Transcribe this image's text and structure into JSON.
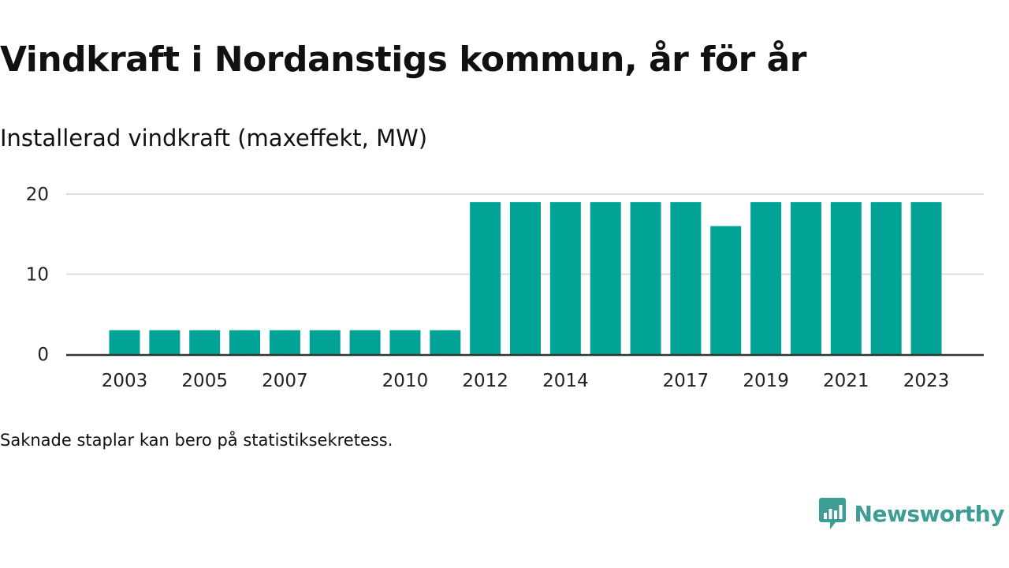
{
  "title": "Vindkraft i Nordanstigs kommun, år för år",
  "subtitle": "Installerad vindkraft (maxeffekt, MW)",
  "note": "Saknade staplar kan bero på statistiksekretess.",
  "brand": {
    "name": "Newsworthy",
    "icon": "newsworthy-logo-icon",
    "color": "#3e9c97"
  },
  "colors": {
    "bar": "#00a396",
    "grid": "#dddddd",
    "axis": "#333333"
  },
  "chart_data": {
    "type": "bar",
    "categories": [
      2003,
      2004,
      2005,
      2006,
      2007,
      2008,
      2009,
      2010,
      2011,
      2012,
      2013,
      2014,
      2015,
      2016,
      2017,
      2018,
      2019,
      2020,
      2021,
      2022,
      2023
    ],
    "values": [
      3,
      3,
      3,
      3,
      3,
      3,
      3,
      3,
      3,
      19,
      19,
      19,
      19,
      19,
      19,
      16,
      19,
      19,
      19,
      19,
      19
    ],
    "x_tick_labels": [
      "2003",
      "2005",
      "2007",
      "2010",
      "2012",
      "2014",
      "2017",
      "2019",
      "2021",
      "2023"
    ],
    "y_ticks": [
      0,
      10,
      20
    ],
    "ylim": [
      0,
      20
    ],
    "title": "Vindkraft i Nordanstigs kommun, år för år",
    "ylabel": "Installerad vindkraft (maxeffekt, MW)",
    "xlabel": "",
    "grid": true,
    "legend": "none"
  }
}
